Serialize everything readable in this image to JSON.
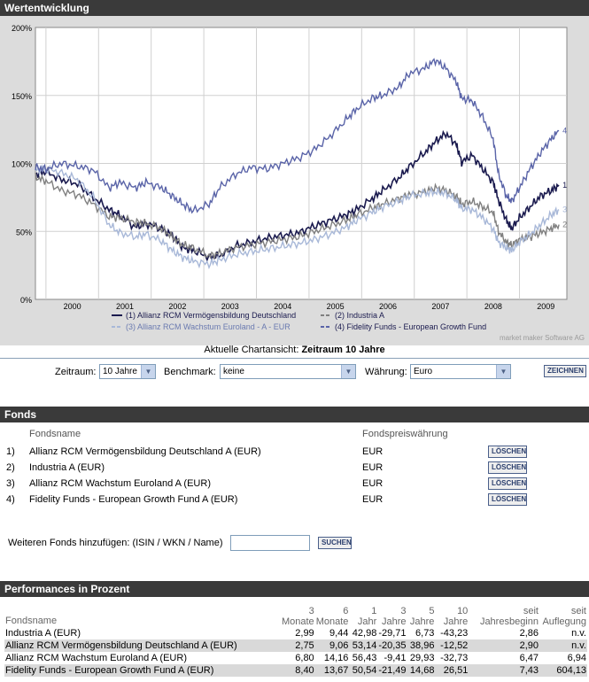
{
  "wertentwicklung": {
    "header": "Wertentwicklung",
    "y_ticks": [
      "200%",
      "150%",
      "100%",
      "50%",
      "0%"
    ],
    "x_ticks": [
      "2000",
      "2001",
      "2002",
      "2003",
      "2004",
      "2005",
      "2006",
      "2007",
      "2008",
      "2009"
    ],
    "legend": [
      {
        "text": "(1) Allianz RCM Vermögensbildung Deutschland",
        "color": "#1a1a4e"
      },
      {
        "text": "(2) Industria A",
        "color": "#808080"
      },
      {
        "text": "(3) Allianz RCM Wachstum Euroland - A - EUR",
        "color": "#a8b8d8"
      },
      {
        "text": "(4) Fidelity Funds - European Growth Fund",
        "color": "#5a64a8"
      }
    ],
    "end_labels": [
      "1",
      "2",
      "3",
      "4"
    ],
    "credit": "market maker Software AG",
    "caption_prefix": "Aktuelle Chartansicht:",
    "caption_value": "Zeitraum 10 Jahre"
  },
  "chart_data": {
    "type": "line",
    "ylim": [
      0,
      200
    ],
    "yunit": "%",
    "xlim": [
      1999.8,
      2009.9
    ],
    "series": [
      {
        "name": "(1) Allianz RCM Vermögensbildung Deutschland",
        "color": "#1a1a4e",
        "width": 1.6,
        "points": [
          [
            1999.8,
            92
          ],
          [
            2000.0,
            94
          ],
          [
            2000.3,
            88
          ],
          [
            2000.6,
            85
          ],
          [
            2000.9,
            75
          ],
          [
            2001.2,
            66
          ],
          [
            2001.4,
            62
          ],
          [
            2001.7,
            53
          ],
          [
            2001.9,
            56
          ],
          [
            2002.2,
            52
          ],
          [
            2002.4,
            47
          ],
          [
            2002.6,
            38
          ],
          [
            2002.8,
            36
          ],
          [
            2003.1,
            31
          ],
          [
            2003.3,
            32
          ],
          [
            2003.6,
            39
          ],
          [
            2003.9,
            42
          ],
          [
            2004.2,
            45
          ],
          [
            2004.5,
            47
          ],
          [
            2004.8,
            49
          ],
          [
            2005.1,
            54
          ],
          [
            2005.4,
            58
          ],
          [
            2005.7,
            62
          ],
          [
            2005.9,
            66
          ],
          [
            2006.2,
            74
          ],
          [
            2006.4,
            80
          ],
          [
            2006.7,
            89
          ],
          [
            2006.9,
            97
          ],
          [
            2007.2,
            108
          ],
          [
            2007.4,
            116
          ],
          [
            2007.6,
            122
          ],
          [
            2007.8,
            114
          ],
          [
            2007.9,
            101
          ],
          [
            2008.1,
            106
          ],
          [
            2008.3,
            96
          ],
          [
            2008.5,
            86
          ],
          [
            2008.6,
            73
          ],
          [
            2008.75,
            58
          ],
          [
            2008.85,
            52
          ],
          [
            2009.0,
            60
          ],
          [
            2009.2,
            68
          ],
          [
            2009.4,
            76
          ],
          [
            2009.6,
            80
          ],
          [
            2009.75,
            84
          ]
        ]
      },
      {
        "name": "(2) Industria A",
        "color": "#808080",
        "width": 1.4,
        "points": [
          [
            1999.8,
            90
          ],
          [
            2000.0,
            87
          ],
          [
            2000.3,
            80
          ],
          [
            2000.6,
            77
          ],
          [
            2000.9,
            70
          ],
          [
            2001.2,
            61
          ],
          [
            2001.4,
            60
          ],
          [
            2001.7,
            57
          ],
          [
            2001.9,
            56
          ],
          [
            2002.2,
            52
          ],
          [
            2002.4,
            46
          ],
          [
            2002.6,
            40
          ],
          [
            2002.8,
            38
          ],
          [
            2003.1,
            32
          ],
          [
            2003.3,
            34
          ],
          [
            2003.6,
            38
          ],
          [
            2003.9,
            40
          ],
          [
            2004.2,
            42
          ],
          [
            2004.5,
            44
          ],
          [
            2004.8,
            46
          ],
          [
            2005.1,
            50
          ],
          [
            2005.4,
            54
          ],
          [
            2005.7,
            58
          ],
          [
            2005.9,
            62
          ],
          [
            2006.2,
            67
          ],
          [
            2006.4,
            70
          ],
          [
            2006.7,
            74
          ],
          [
            2006.9,
            77
          ],
          [
            2007.2,
            79
          ],
          [
            2007.4,
            82
          ],
          [
            2007.6,
            80
          ],
          [
            2007.8,
            76
          ],
          [
            2007.9,
            70
          ],
          [
            2008.1,
            72
          ],
          [
            2008.3,
            68
          ],
          [
            2008.5,
            64
          ],
          [
            2008.6,
            50
          ],
          [
            2008.75,
            42
          ],
          [
            2008.85,
            40
          ],
          [
            2009.0,
            44
          ],
          [
            2009.2,
            46
          ],
          [
            2009.4,
            49
          ],
          [
            2009.6,
            52
          ],
          [
            2009.75,
            55
          ]
        ]
      },
      {
        "name": "(3) Allianz RCM Wachstum Euroland - A - EUR",
        "color": "#a8b8d8",
        "width": 1.4,
        "points": [
          [
            1999.8,
            95
          ],
          [
            2000.0,
            96
          ],
          [
            2000.3,
            93
          ],
          [
            2000.6,
            88
          ],
          [
            2000.9,
            75
          ],
          [
            2001.2,
            55
          ],
          [
            2001.4,
            49
          ],
          [
            2001.7,
            46
          ],
          [
            2001.9,
            48
          ],
          [
            2002.2,
            43
          ],
          [
            2002.4,
            36
          ],
          [
            2002.6,
            31
          ],
          [
            2002.8,
            28
          ],
          [
            2003.1,
            26
          ],
          [
            2003.3,
            29
          ],
          [
            2003.6,
            33
          ],
          [
            2003.9,
            35
          ],
          [
            2004.2,
            37
          ],
          [
            2004.5,
            39
          ],
          [
            2004.8,
            41
          ],
          [
            2005.1,
            44
          ],
          [
            2005.4,
            48
          ],
          [
            2005.7,
            53
          ],
          [
            2005.9,
            58
          ],
          [
            2006.2,
            64
          ],
          [
            2006.4,
            68
          ],
          [
            2006.7,
            72
          ],
          [
            2006.9,
            76
          ],
          [
            2007.2,
            78
          ],
          [
            2007.4,
            79
          ],
          [
            2007.6,
            78
          ],
          [
            2007.8,
            73
          ],
          [
            2007.9,
            67
          ],
          [
            2008.1,
            66
          ],
          [
            2008.3,
            60
          ],
          [
            2008.5,
            52
          ],
          [
            2008.6,
            42
          ],
          [
            2008.75,
            38
          ],
          [
            2008.85,
            36
          ],
          [
            2009.0,
            42
          ],
          [
            2009.2,
            48
          ],
          [
            2009.4,
            55
          ],
          [
            2009.6,
            62
          ],
          [
            2009.75,
            66
          ]
        ]
      },
      {
        "name": "(4) Fidelity Funds - European Growth Fund",
        "color": "#5a64a8",
        "width": 1.4,
        "points": [
          [
            1999.8,
            97
          ],
          [
            2000.0,
            96
          ],
          [
            2000.3,
            100
          ],
          [
            2000.6,
            98
          ],
          [
            2000.9,
            95
          ],
          [
            2001.2,
            82
          ],
          [
            2001.4,
            86
          ],
          [
            2001.7,
            82
          ],
          [
            2001.9,
            86
          ],
          [
            2002.2,
            82
          ],
          [
            2002.4,
            76
          ],
          [
            2002.6,
            70
          ],
          [
            2002.8,
            65
          ],
          [
            2003.1,
            70
          ],
          [
            2003.3,
            82
          ],
          [
            2003.6,
            92
          ],
          [
            2003.9,
            97
          ],
          [
            2004.2,
            96
          ],
          [
            2004.5,
            100
          ],
          [
            2004.8,
            104
          ],
          [
            2005.1,
            110
          ],
          [
            2005.4,
            120
          ],
          [
            2005.7,
            132
          ],
          [
            2005.9,
            140
          ],
          [
            2006.2,
            148
          ],
          [
            2006.4,
            150
          ],
          [
            2006.7,
            156
          ],
          [
            2006.9,
            166
          ],
          [
            2007.2,
            170
          ],
          [
            2007.4,
            176
          ],
          [
            2007.6,
            170
          ],
          [
            2007.8,
            160
          ],
          [
            2007.9,
            148
          ],
          [
            2008.1,
            146
          ],
          [
            2008.3,
            134
          ],
          [
            2008.5,
            118
          ],
          [
            2008.6,
            92
          ],
          [
            2008.75,
            76
          ],
          [
            2008.85,
            72
          ],
          [
            2009.0,
            82
          ],
          [
            2009.2,
            96
          ],
          [
            2009.4,
            108
          ],
          [
            2009.6,
            118
          ],
          [
            2009.75,
            124
          ]
        ]
      }
    ]
  },
  "controls": {
    "zeitraum_label": "Zeitraum:",
    "zeitraum_value": "10 Jahre",
    "benchmark_label": "Benchmark:",
    "benchmark_value": "keine",
    "waehrung_label": "Währung:",
    "waehrung_value": "Euro",
    "zeichnen_label": "ZEICHNEN"
  },
  "fonds": {
    "header": "Fonds",
    "col_name": "Fondsname",
    "col_currency": "Fondspreiswährung",
    "delete_label": "LÖSCHEN",
    "rows": [
      {
        "nr": "1)",
        "name": "Allianz RCM Vermögensbildung Deutschland A (EUR)",
        "currency": "EUR"
      },
      {
        "nr": "2)",
        "name": "Industria A (EUR)",
        "currency": "EUR"
      },
      {
        "nr": "3)",
        "name": "Allianz RCM Wachstum Euroland A (EUR)",
        "currency": "EUR"
      },
      {
        "nr": "4)",
        "name": "Fidelity Funds - European Growth Fund A (EUR)",
        "currency": "EUR"
      }
    ],
    "add_label": "Weiteren Fonds hinzufügen: (ISIN / WKN / Name)",
    "add_value": "",
    "search_label": "SUCHEN"
  },
  "performance": {
    "header": "Performances in Prozent",
    "col_name": "Fondsname",
    "cols": [
      [
        "3",
        "Monate"
      ],
      [
        "6",
        "Monate"
      ],
      [
        "1",
        "Jahr"
      ],
      [
        "3",
        "Jahre"
      ],
      [
        "5",
        "Jahre"
      ],
      [
        "10",
        "Jahre"
      ],
      [
        "seit",
        "Jahresbeginn"
      ],
      [
        "seit",
        "Auflegung"
      ]
    ],
    "rows": [
      {
        "name": "Industria A (EUR)",
        "values": [
          "2,99",
          "9,44",
          "42,98",
          "-29,71",
          "6,73",
          "-43,23",
          "2,86",
          "n.v."
        ]
      },
      {
        "name": "Allianz RCM Vermögensbildung Deutschland A (EUR)",
        "values": [
          "2,75",
          "9,06",
          "53,14",
          "-20,35",
          "38,96",
          "-12,52",
          "2,90",
          "n.v."
        ]
      },
      {
        "name": "Allianz RCM Wachstum Euroland A (EUR)",
        "values": [
          "6,80",
          "14,16",
          "56,43",
          "-9,41",
          "29,93",
          "-32,73",
          "6,47",
          "6,94"
        ]
      },
      {
        "name": "Fidelity Funds - European Growth Fund A (EUR)",
        "values": [
          "8,40",
          "13,67",
          "50,54",
          "-21,49",
          "14,68",
          "26,51",
          "7,43",
          "604,13"
        ]
      }
    ]
  }
}
